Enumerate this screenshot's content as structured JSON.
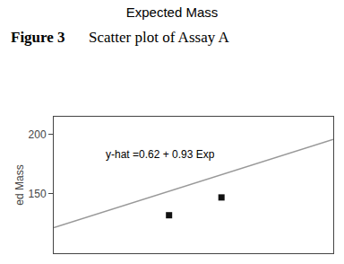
{
  "chart_data": {
    "type": "scatter",
    "title": "Expected Mass",
    "y_label": "ed Mass",
    "annotations": [
      "Figure 3",
      "Scatter plot of Assay A",
      "y-hat =0.62 + 0.93 Exp"
    ],
    "series": [
      {
        "type": "line",
        "color": "#999999",
        "line_style": "solid",
        "x": [
          130,
          210
        ],
        "values": [
          121.52,
          195.92
        ]
      },
      {
        "type": "scatter",
        "color": "#111111",
        "marker": "square",
        "x": [
          163,
          178
        ],
        "values": [
          132,
          147
        ]
      }
    ],
    "xlim": [
      130,
      210
    ],
    "ylim": [
      100,
      215
    ],
    "yticks": [
      150,
      200
    ],
    "tick_labels": "y",
    "grid": false
  }
}
